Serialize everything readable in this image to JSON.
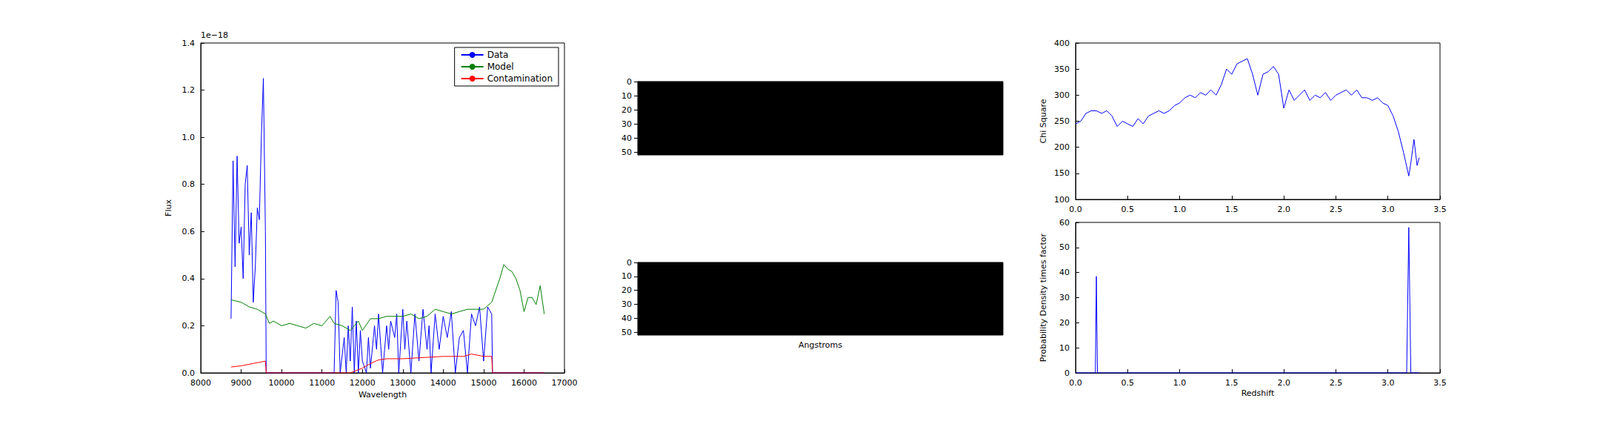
{
  "chart_data": [
    {
      "type": "line",
      "xlabel": "Wavelength",
      "ylabel": "Flux",
      "annotations": [
        "1e−18"
      ],
      "legend": "upper right",
      "xlim": [
        8000,
        17000
      ],
      "xticks": [
        8000,
        9000,
        10000,
        11000,
        12000,
        13000,
        14000,
        15000,
        16000,
        17000
      ],
      "ylim": [
        0,
        1.4
      ],
      "yticks": [
        {
          "value": 0,
          "label": "0.0"
        },
        {
          "value": 0.2,
          "label": "0.2"
        },
        {
          "value": 0.4,
          "label": "0.4"
        },
        {
          "value": 0.6,
          "label": "0.6"
        },
        {
          "value": 0.8,
          "label": "0.8"
        },
        {
          "value": 1.0,
          "label": "1.0"
        },
        {
          "value": 1.2,
          "label": "1.2"
        },
        {
          "value": 1.4,
          "label": "1.4"
        }
      ],
      "series": [
        {
          "name": "Data",
          "color": "#0000ff",
          "x": [
            8750,
            8800,
            8850,
            8900,
            8950,
            9000,
            9050,
            9100,
            9150,
            9200,
            9250,
            9300,
            9350,
            9400,
            9450,
            9500,
            9550,
            9600,
            9620,
            11300,
            11350,
            11400,
            11450,
            11550,
            11600,
            11650,
            11700,
            11750,
            11800,
            11850,
            11900,
            11950,
            12000,
            12100,
            12150,
            12200,
            12300,
            12350,
            12400,
            12500,
            12600,
            12650,
            12700,
            12800,
            12850,
            12900,
            13000,
            13050,
            13100,
            13200,
            13300,
            13400,
            13500,
            13600,
            13650,
            13700,
            13800,
            13900,
            14000,
            14100,
            14200,
            14300,
            14400,
            14500,
            14600,
            14700,
            14800,
            14900,
            15000,
            15100,
            15200,
            15220,
            16500
          ],
          "values": [
            0.23,
            0.9,
            0.45,
            0.92,
            0.55,
            0.62,
            0.4,
            0.8,
            0.88,
            0.5,
            0.68,
            0.3,
            0.45,
            0.7,
            0.65,
            1.0,
            1.25,
            0.6,
            0.0,
            0.0,
            0.35,
            0.3,
            0.0,
            0.15,
            0.0,
            0.2,
            0.05,
            0.28,
            0.0,
            0.22,
            0.0,
            0.18,
            0.05,
            0.0,
            0.15,
            0.02,
            0.2,
            0.1,
            0.25,
            0.0,
            0.2,
            0.1,
            0.22,
            0.15,
            0.25,
            0.0,
            0.27,
            0.1,
            0.22,
            0.0,
            0.25,
            0.05,
            0.27,
            0.1,
            0.2,
            0.0,
            0.25,
            0.1,
            0.24,
            0.15,
            0.26,
            0.0,
            0.15,
            0.18,
            0.0,
            0.25,
            0.2,
            0.28,
            0.05,
            0.28,
            0.25,
            0.0,
            0.0
          ]
        },
        {
          "name": "Model",
          "color": "#008000",
          "x": [
            8750,
            9000,
            9200,
            9400,
            9600,
            9700,
            9800,
            10000,
            10200,
            10400,
            10600,
            10800,
            11000,
            11200,
            11300,
            11500,
            11700,
            11900,
            12000,
            12200,
            12400,
            12600,
            12800,
            13000,
            13200,
            13400,
            13600,
            13800,
            14000,
            14200,
            14400,
            14600,
            14800,
            15000,
            15200,
            15400,
            15500,
            15600,
            15700,
            15800,
            15900,
            16000,
            16100,
            16200,
            16300,
            16400,
            16500
          ],
          "values": [
            0.31,
            0.3,
            0.28,
            0.27,
            0.25,
            0.21,
            0.22,
            0.2,
            0.21,
            0.2,
            0.19,
            0.21,
            0.2,
            0.24,
            0.21,
            0.2,
            0.18,
            0.22,
            0.18,
            0.23,
            0.23,
            0.24,
            0.24,
            0.24,
            0.25,
            0.23,
            0.24,
            0.27,
            0.26,
            0.25,
            0.26,
            0.27,
            0.27,
            0.27,
            0.3,
            0.4,
            0.46,
            0.44,
            0.43,
            0.4,
            0.35,
            0.26,
            0.32,
            0.32,
            0.29,
            0.37,
            0.25
          ]
        },
        {
          "name": "Contamination",
          "color": "#ff0000",
          "x": [
            8750,
            9000,
            9300,
            9600,
            9620,
            11700,
            12000,
            12200,
            12400,
            12600,
            13000,
            13500,
            14000,
            14500,
            14700,
            15000,
            15200,
            15220,
            16500
          ],
          "values": [
            0.025,
            0.03,
            0.04,
            0.05,
            0.0,
            0.0,
            0.02,
            0.04,
            0.055,
            0.06,
            0.06,
            0.065,
            0.07,
            0.07,
            0.08,
            0.07,
            0.07,
            0.0,
            0.0
          ]
        }
      ]
    },
    {
      "type": "image",
      "color": "#000000",
      "ylim": [
        0,
        52
      ],
      "yticks": [
        0,
        10,
        20,
        30,
        40,
        50
      ],
      "tick_labels": "y"
    },
    {
      "type": "image",
      "color": "#000000",
      "xlabel": "Angstroms",
      "ylim": [
        0,
        52
      ],
      "yticks": [
        0,
        10,
        20,
        30,
        40,
        50
      ],
      "tick_labels": "y"
    },
    {
      "type": "line",
      "ylabel": "Chi Square",
      "xlim": [
        0,
        3.5
      ],
      "xticks": [
        {
          "value": 0,
          "label": "0.0"
        },
        {
          "value": 0.5,
          "label": "0.5"
        },
        {
          "value": 1.0,
          "label": "1.0"
        },
        {
          "value": 1.5,
          "label": "1.5"
        },
        {
          "value": 2.0,
          "label": "2.0"
        },
        {
          "value": 2.5,
          "label": "2.5"
        },
        {
          "value": 3.0,
          "label": "3.0"
        },
        {
          "value": 3.5,
          "label": "3.5"
        }
      ],
      "ylim": [
        100,
        400
      ],
      "yticks": [
        100,
        150,
        200,
        250,
        300,
        350,
        400
      ],
      "series": [
        {
          "name": "Chi Square",
          "color": "#0000ff",
          "x": [
            0,
            0.05,
            0.1,
            0.15,
            0.2,
            0.25,
            0.3,
            0.35,
            0.4,
            0.45,
            0.5,
            0.55,
            0.6,
            0.65,
            0.7,
            0.75,
            0.8,
            0.85,
            0.9,
            0.95,
            1.0,
            1.05,
            1.1,
            1.15,
            1.2,
            1.25,
            1.3,
            1.35,
            1.4,
            1.45,
            1.5,
            1.55,
            1.6,
            1.65,
            1.7,
            1.75,
            1.8,
            1.85,
            1.9,
            1.95,
            2.0,
            2.05,
            2.1,
            2.15,
            2.2,
            2.25,
            2.3,
            2.35,
            2.4,
            2.45,
            2.5,
            2.55,
            2.6,
            2.65,
            2.7,
            2.75,
            2.8,
            2.85,
            2.9,
            2.95,
            3.0,
            3.05,
            3.1,
            3.15,
            3.2,
            3.22,
            3.25,
            3.28,
            3.3
          ],
          "values": [
            245,
            250,
            265,
            270,
            270,
            265,
            270,
            260,
            240,
            250,
            245,
            240,
            255,
            245,
            260,
            265,
            270,
            265,
            270,
            280,
            285,
            295,
            300,
            295,
            305,
            300,
            310,
            300,
            320,
            350,
            340,
            360,
            365,
            370,
            340,
            300,
            340,
            345,
            355,
            340,
            275,
            310,
            290,
            300,
            310,
            290,
            300,
            295,
            305,
            290,
            300,
            305,
            310,
            300,
            310,
            295,
            295,
            290,
            295,
            285,
            280,
            260,
            230,
            190,
            145,
            170,
            215,
            165,
            180
          ]
        }
      ]
    },
    {
      "type": "line",
      "xlabel": "Redshift",
      "ylabel": "Probability Density times factor",
      "xlim": [
        0,
        3.5
      ],
      "xticks": [
        {
          "value": 0,
          "label": "0.0"
        },
        {
          "value": 0.5,
          "label": "0.5"
        },
        {
          "value": 1.0,
          "label": "1.0"
        },
        {
          "value": 1.5,
          "label": "1.5"
        },
        {
          "value": 2.0,
          "label": "2.0"
        },
        {
          "value": 2.5,
          "label": "2.5"
        },
        {
          "value": 3.0,
          "label": "3.0"
        },
        {
          "value": 3.5,
          "label": "3.5"
        }
      ],
      "ylim": [
        0,
        60
      ],
      "yticks": [
        0,
        10,
        20,
        30,
        40,
        50,
        60
      ],
      "series": [
        {
          "name": "Probability Density times factor",
          "color": "#0000ff",
          "x": [
            0,
            0.19,
            0.2,
            0.21,
            3.18,
            3.2,
            3.22,
            3.3
          ],
          "values": [
            0,
            0,
            38.5,
            0,
            0,
            58,
            0,
            0
          ]
        }
      ]
    }
  ]
}
